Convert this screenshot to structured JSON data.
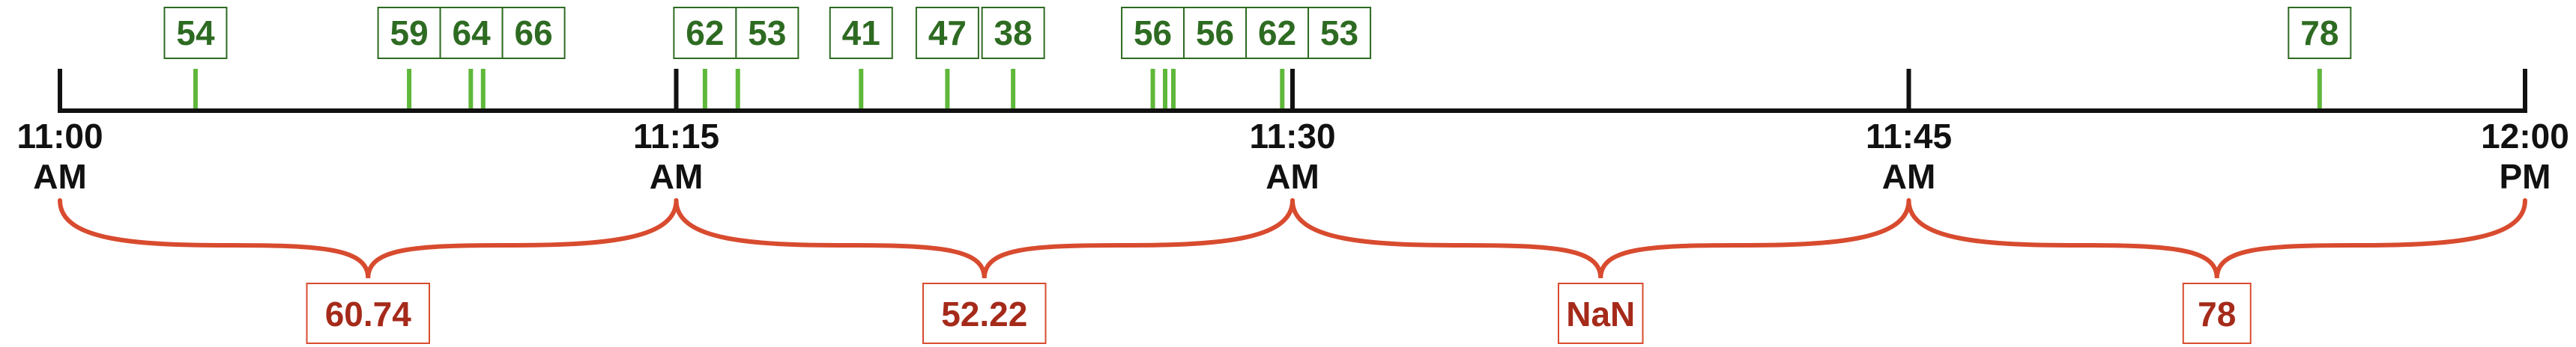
{
  "colors": {
    "axis": "#111111",
    "event": "#5fb83a",
    "event_label": "#2e6b22",
    "event_box": "#2e6b22",
    "avg": "#d84b2f",
    "avg_label": "#a52a1a"
  },
  "axis": {
    "start_minutes": 0,
    "end_minutes": 60,
    "ticks": [
      {
        "minute": 0,
        "line1": "11:00",
        "line2": "AM"
      },
      {
        "minute": 15,
        "line1": "11:15",
        "line2": "AM"
      },
      {
        "minute": 30,
        "line1": "11:30",
        "line2": "AM"
      },
      {
        "minute": 45,
        "line1": "11:45",
        "line2": "AM"
      },
      {
        "minute": 60,
        "line1": "12:00",
        "line2": "PM"
      }
    ]
  },
  "events": [
    {
      "minute": 3.3,
      "label": "54"
    },
    {
      "minute": 8.5,
      "label": "59"
    },
    {
      "minute": 10.0,
      "label": "64"
    },
    {
      "minute": 10.3,
      "label": "66"
    },
    {
      "minute": 15.7,
      "label": "62"
    },
    {
      "minute": 16.5,
      "label": "53"
    },
    {
      "minute": 19.5,
      "label": "41"
    },
    {
      "minute": 21.6,
      "label": "47"
    },
    {
      "minute": 23.2,
      "label": "38"
    },
    {
      "minute": 26.6,
      "label": "56"
    },
    {
      "minute": 26.9,
      "label": "56"
    },
    {
      "minute": 27.1,
      "label": "62"
    },
    {
      "minute": 29.75,
      "label": "53"
    },
    {
      "minute": 55.0,
      "label": "78"
    }
  ],
  "windows": [
    {
      "start": 0,
      "end": 15,
      "label": "60.74"
    },
    {
      "start": 15,
      "end": 30,
      "label": "52.22"
    },
    {
      "start": 30,
      "end": 45,
      "label": "NaN"
    },
    {
      "start": 45,
      "end": 60,
      "label": "78"
    }
  ]
}
